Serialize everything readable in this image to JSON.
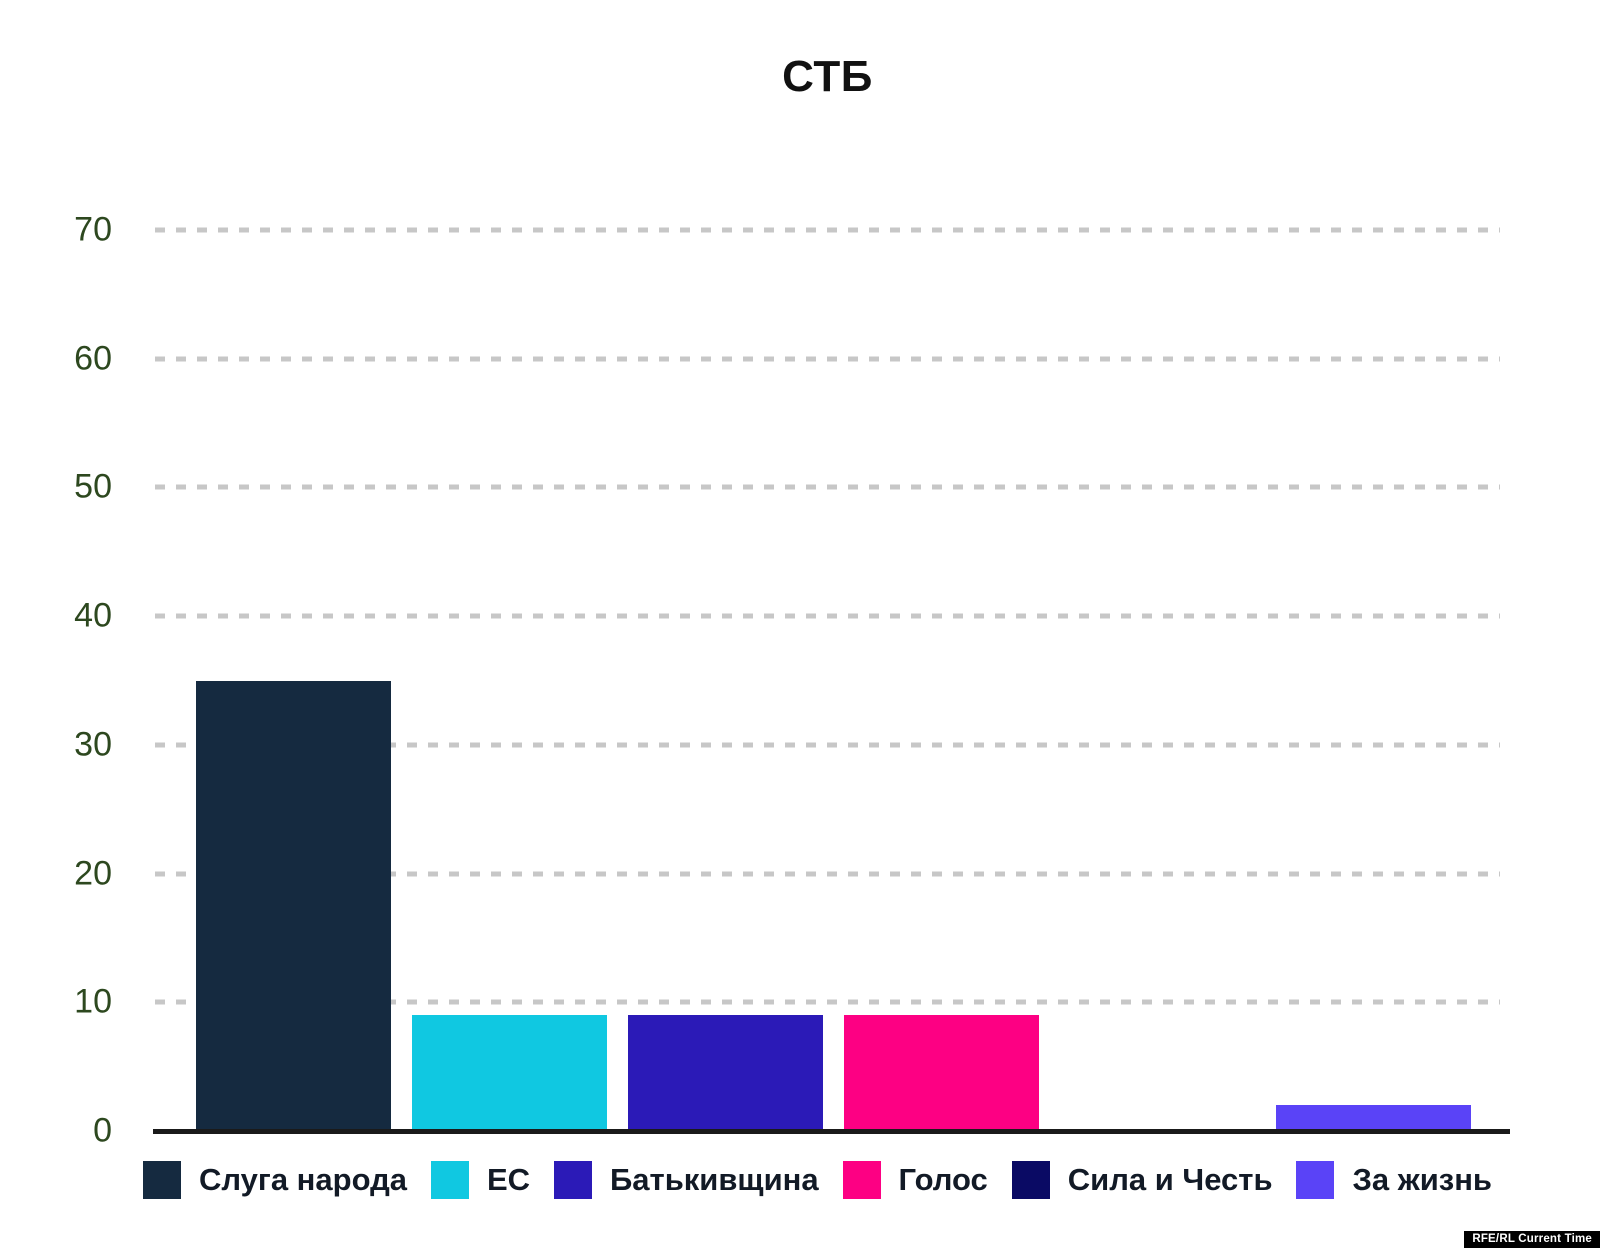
{
  "title": "СТБ",
  "watermark": "RFE/RL Current Time",
  "chart_data": {
    "type": "bar",
    "title": "СТБ",
    "categories": [
      "Слуга народа",
      "ЕС",
      "Батькивщина",
      "Голос",
      "Сила и Честь",
      "За жизнь"
    ],
    "values": [
      35,
      9,
      9,
      9,
      0,
      2
    ],
    "colors": [
      "#152a40",
      "#10c8e1",
      "#2b1ab7",
      "#fd0083",
      "#0a0a64",
      "#5a43f7"
    ],
    "xlabel": "",
    "ylabel": "",
    "ylim": [
      0,
      70
    ],
    "yticks": [
      0,
      10,
      20,
      30,
      40,
      50,
      60,
      70
    ],
    "ytick_color": "#2d481f",
    "grid": "horizontal-dashed",
    "gridline_color": "#c7c7c7",
    "axis_color": "#1a1a1a",
    "legend_position": "bottom"
  }
}
